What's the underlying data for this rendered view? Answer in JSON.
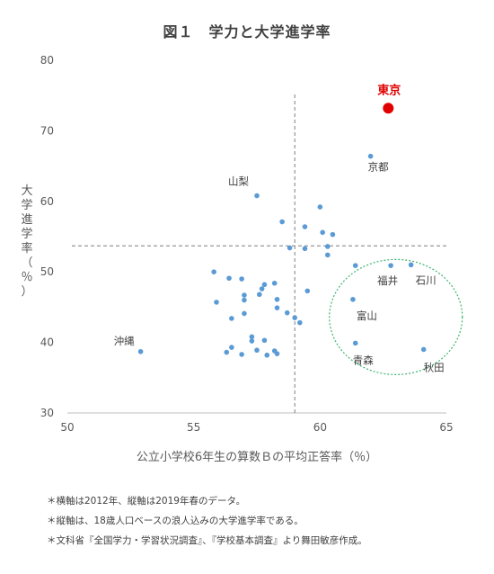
{
  "chart_data": {
    "type": "scatter",
    "title": "図１　学力と大学進学率",
    "xlabel": "公立小学校6年生の算数Ｂの平均正答率（％）",
    "ylabel": "大学進学率（％）",
    "xlim": [
      50,
      65
    ],
    "ylim": [
      30,
      80
    ],
    "xticks": [
      "50",
      "55",
      "60",
      "65"
    ],
    "yticks": [
      "30",
      "40",
      "50",
      "60",
      "70",
      "80"
    ],
    "mean_lines": {
      "x": 59.0,
      "y": 53.7
    },
    "highlight": {
      "label": "東京",
      "x": 62.7,
      "y": 73.2,
      "color": "#e00000"
    },
    "point_color": "#5b9bd5",
    "grouping_ellipse_color": "#3cb371",
    "points": [
      {
        "x": 62.0,
        "y": 66.4,
        "label": "京都"
      },
      {
        "x": 57.5,
        "y": 60.8,
        "label": "山梨"
      },
      {
        "x": 52.9,
        "y": 38.7,
        "label": "沖縄"
      },
      {
        "x": 62.8,
        "y": 50.9,
        "label": "福井"
      },
      {
        "x": 63.6,
        "y": 51.0,
        "label": "石川"
      },
      {
        "x": 61.3,
        "y": 46.1,
        "label": "富山"
      },
      {
        "x": 61.4,
        "y": 39.9,
        "label": "青森"
      },
      {
        "x": 64.1,
        "y": 39.0,
        "label": "秋田"
      },
      {
        "x": 60.0,
        "y": 59.2
      },
      {
        "x": 58.5,
        "y": 57.1
      },
      {
        "x": 59.4,
        "y": 56.4
      },
      {
        "x": 60.1,
        "y": 55.6
      },
      {
        "x": 60.5,
        "y": 55.3
      },
      {
        "x": 58.8,
        "y": 53.4
      },
      {
        "x": 59.4,
        "y": 53.3
      },
      {
        "x": 60.3,
        "y": 53.6
      },
      {
        "x": 60.3,
        "y": 52.4
      },
      {
        "x": 61.4,
        "y": 50.9
      },
      {
        "x": 55.8,
        "y": 50.0
      },
      {
        "x": 56.4,
        "y": 49.1
      },
      {
        "x": 56.9,
        "y": 49.0
      },
      {
        "x": 57.8,
        "y": 48.2
      },
      {
        "x": 58.2,
        "y": 48.4
      },
      {
        "x": 57.7,
        "y": 47.6
      },
      {
        "x": 57.6,
        "y": 46.8
      },
      {
        "x": 57.0,
        "y": 46.7
      },
      {
        "x": 55.9,
        "y": 45.7
      },
      {
        "x": 57.0,
        "y": 46.0
      },
      {
        "x": 58.3,
        "y": 46.1
      },
      {
        "x": 58.3,
        "y": 44.9
      },
      {
        "x": 58.7,
        "y": 44.2
      },
      {
        "x": 59.5,
        "y": 47.3
      },
      {
        "x": 57.0,
        "y": 44.1
      },
      {
        "x": 56.5,
        "y": 43.4
      },
      {
        "x": 59.0,
        "y": 43.5
      },
      {
        "x": 59.2,
        "y": 42.8
      },
      {
        "x": 57.3,
        "y": 40.8
      },
      {
        "x": 57.3,
        "y": 40.2
      },
      {
        "x": 57.8,
        "y": 40.3
      },
      {
        "x": 56.5,
        "y": 39.3
      },
      {
        "x": 56.3,
        "y": 38.6
      },
      {
        "x": 56.9,
        "y": 38.3
      },
      {
        "x": 57.5,
        "y": 38.9
      },
      {
        "x": 57.9,
        "y": 38.2
      },
      {
        "x": 58.2,
        "y": 38.8
      },
      {
        "x": 58.3,
        "y": 38.4
      }
    ]
  },
  "notes": [
    "＊横軸は2012年、縦軸は2019年春のデータ。",
    "＊縦軸は、18歳人口ベースの浪人込みの大学進学率である。",
    "＊文科省『全国学力・学習状況調査』、『学校基本調査』より舞田敏彦作成。"
  ]
}
